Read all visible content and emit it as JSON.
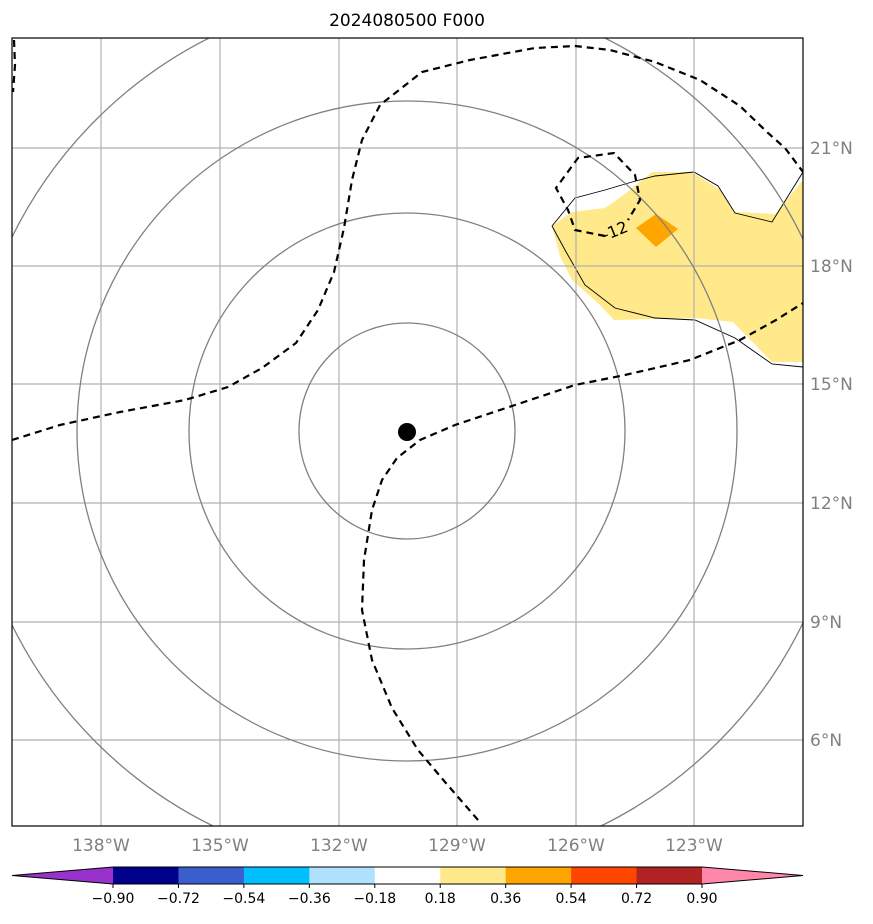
{
  "title": "2024080500 F000",
  "map": {
    "lon_ticks": [
      "138°W",
      "135°W",
      "132°W",
      "129°W",
      "126°W",
      "123°W"
    ],
    "lat_ticks": [
      "21°N",
      "18°N",
      "15°N",
      "12°N",
      "9°N",
      "6°N"
    ],
    "contour_label": "-12",
    "center_marker": "storm-center"
  },
  "colorbar": {
    "labels": [
      "−0.90",
      "−0.72",
      "−0.54",
      "−0.36",
      "−0.18",
      "0.18",
      "0.36",
      "0.54",
      "0.72",
      "0.90"
    ],
    "colors": [
      "#9932cc",
      "#00008b",
      "#3a5fcd",
      "#00bfff",
      "#b0e2ff",
      "#ffffff",
      "#ffe98a",
      "#ffa500",
      "#ff4500",
      "#b22222",
      "#ff88aa"
    ],
    "extend": "both"
  }
}
